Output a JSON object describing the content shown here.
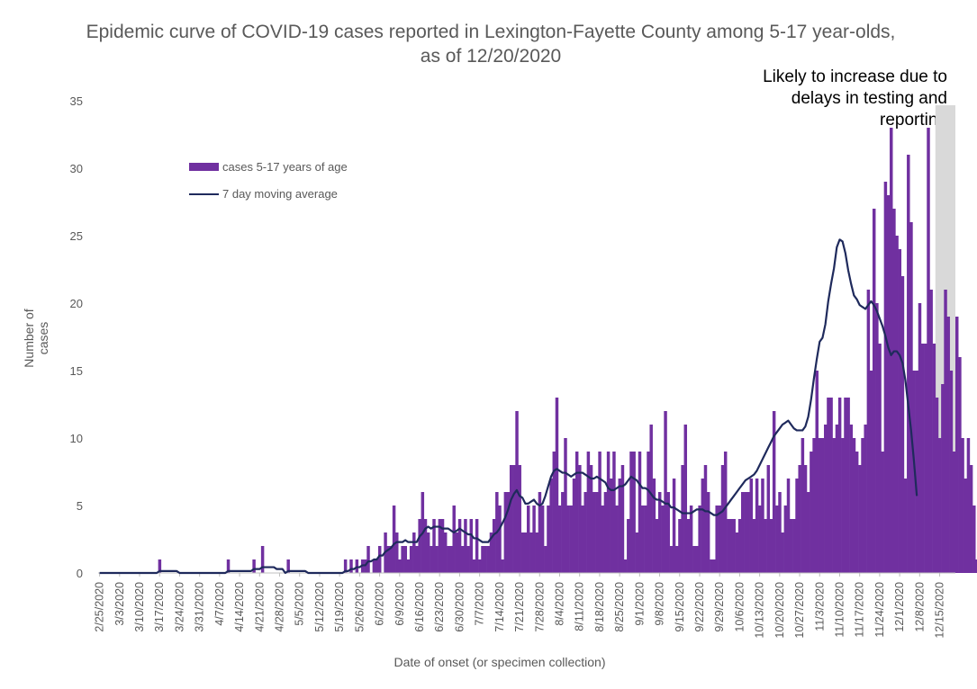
{
  "chart_data": {
    "type": "bar",
    "title": "Epidemic curve of COVID-19 cases reported in Lexington-Fayette County among 5-17 year-olds, as of 12/20/2020",
    "xlabel": "Date of onset (or specimen collection)",
    "ylabel": "Number of cases",
    "ylim": [
      0,
      35
    ],
    "yticks": [
      0,
      5,
      10,
      15,
      20,
      25,
      30,
      35
    ],
    "x_tick_labels": [
      "2/25/2020",
      "3/3/2020",
      "3/10/2020",
      "3/17/2020",
      "3/24/2020",
      "3/31/2020",
      "4/7/2020",
      "4/14/2020",
      "4/21/2020",
      "4/28/2020",
      "5/5/2020",
      "5/12/2020",
      "5/19/2020",
      "5/26/2020",
      "6/2/2020",
      "6/9/2020",
      "6/16/2020",
      "6/23/2020",
      "6/30/2020",
      "7/7/2020",
      "7/14/2020",
      "7/21/2020",
      "7/28/2020",
      "8/4/2020",
      "8/11/2020",
      "8/18/2020",
      "8/25/2020",
      "9/1/2020",
      "9/8/2020",
      "9/15/2020",
      "9/22/2020",
      "9/29/2020",
      "10/6/2020",
      "10/13/2020",
      "10/20/2020",
      "10/27/2020",
      "11/3/2020",
      "11/10/2020",
      "11/17/2020",
      "11/24/2020",
      "12/1/2020",
      "12/8/2020",
      "12/15/2020"
    ],
    "first_date": "2/25/2020",
    "last_date": "12/20/2020",
    "shaded_region": {
      "start": "12/14/2020",
      "end": "12/20/2020"
    },
    "annotation": "Likely to increase due to delays in testing and reporting",
    "legend_position": "upper-left",
    "colors": {
      "bars": "#7030a0",
      "moving_average": "#1f2a5c",
      "shade": "#d9d9d9"
    },
    "series": [
      {
        "name": "cases 5-17 years of age",
        "type": "bar",
        "values": [
          0,
          0,
          0,
          0,
          0,
          0,
          0,
          0,
          0,
          0,
          0,
          0,
          0,
          0,
          0,
          0,
          0,
          0,
          0,
          0,
          0,
          1,
          0,
          0,
          0,
          0,
          0,
          0,
          0,
          0,
          0,
          0,
          0,
          0,
          0,
          0,
          0,
          0,
          0,
          0,
          0,
          0,
          0,
          0,
          0,
          1,
          0,
          0,
          0,
          0,
          0,
          0,
          0,
          0,
          1,
          0,
          0,
          2,
          0,
          0,
          0,
          0,
          0,
          0,
          0,
          0,
          1,
          0,
          0,
          0,
          0,
          0,
          0,
          0,
          0,
          0,
          0,
          0,
          0,
          0,
          0,
          0,
          0,
          0,
          0,
          0,
          1,
          0,
          1,
          0,
          1,
          0,
          1,
          1,
          2,
          0,
          1,
          1,
          2,
          0,
          3,
          2,
          2,
          5,
          3,
          1,
          2,
          2,
          1,
          2,
          3,
          2,
          4,
          6,
          4,
          3,
          2,
          4,
          2,
          4,
          4,
          3,
          2,
          2,
          5,
          3,
          4,
          2,
          4,
          2,
          4,
          1,
          4,
          1,
          2,
          2,
          2,
          3,
          4,
          6,
          5,
          1,
          6,
          6,
          8,
          8,
          12,
          8,
          3,
          3,
          5,
          3,
          5,
          3,
          6,
          5,
          2,
          5,
          7,
          9,
          13,
          5,
          6,
          10,
          5,
          5,
          7,
          9,
          8,
          5,
          6,
          9,
          8,
          6,
          6,
          9,
          5,
          6,
          9,
          7,
          9,
          5,
          7,
          8,
          1,
          4,
          9,
          9,
          3,
          9,
          5,
          5,
          9,
          11,
          7,
          4,
          6,
          5,
          12,
          6,
          2,
          7,
          2,
          4,
          8,
          11,
          4,
          5,
          2,
          2,
          5,
          7,
          8,
          6,
          1,
          1,
          5,
          5,
          8,
          9,
          4,
          4,
          4,
          3,
          4,
          6,
          6,
          6,
          7,
          4,
          7,
          5,
          7,
          4,
          8,
          4,
          12,
          5,
          6,
          3,
          5,
          7,
          4,
          4,
          7,
          8,
          10,
          8,
          6,
          9,
          10,
          15,
          10,
          10,
          11,
          13,
          13,
          10,
          11,
          13,
          10,
          13,
          13,
          11,
          10,
          9,
          8,
          10,
          11,
          21,
          15,
          27,
          20,
          17,
          9,
          29,
          28,
          33,
          27,
          25,
          24,
          22,
          7,
          31,
          26,
          15,
          15,
          20,
          17,
          17,
          33,
          21,
          17,
          13,
          10,
          14,
          21,
          19,
          15,
          9,
          19,
          16,
          10,
          7,
          10,
          8,
          5,
          1
        ]
      },
      {
        "name": "7 day moving average",
        "type": "line",
        "values": [
          0,
          0,
          0,
          0,
          0,
          0,
          0,
          0,
          0,
          0,
          0,
          0,
          0,
          0,
          0,
          0,
          0,
          0,
          0,
          0,
          0,
          0.14,
          0.14,
          0.14,
          0.14,
          0.14,
          0.14,
          0.14,
          0,
          0,
          0,
          0,
          0,
          0,
          0,
          0,
          0,
          0,
          0,
          0,
          0,
          0,
          0,
          0,
          0,
          0.14,
          0.14,
          0.14,
          0.14,
          0.14,
          0.14,
          0.14,
          0.14,
          0.14,
          0.29,
          0.29,
          0.29,
          0.43,
          0.43,
          0.43,
          0.43,
          0.43,
          0.29,
          0.29,
          0.29,
          0,
          0.14,
          0.14,
          0.14,
          0.14,
          0.14,
          0.14,
          0.14,
          0,
          0,
          0,
          0,
          0,
          0,
          0,
          0,
          0,
          0,
          0,
          0,
          0,
          0.14,
          0.14,
          0.29,
          0.29,
          0.43,
          0.43,
          0.57,
          0.57,
          0.86,
          0.86,
          1,
          1,
          1.29,
          1.29,
          1.57,
          1.71,
          1.86,
          2.14,
          2.29,
          2.29,
          2.29,
          2.43,
          2.29,
          2.29,
          2.29,
          2.29,
          2.71,
          2.93,
          3.29,
          3.43,
          3.29,
          3.43,
          3.43,
          3.43,
          3.29,
          3.29,
          3.29,
          3.14,
          3,
          3.14,
          3.29,
          3.14,
          3,
          2.86,
          2.86,
          2.57,
          2.57,
          2.43,
          2.29,
          2.29,
          2.29,
          2.57,
          2.86,
          3,
          3.29,
          3.71,
          4.14,
          4.71,
          5.43,
          5.86,
          6.14,
          5.71,
          5.57,
          5.14,
          5.14,
          5.29,
          5.43,
          5.14,
          5,
          5.14,
          5.71,
          6.43,
          7.14,
          7.57,
          7.71,
          7.57,
          7.43,
          7.43,
          7.29,
          7.14,
          7.29,
          7.43,
          7.43,
          7.43,
          7.29,
          7.14,
          7,
          7,
          7.14,
          7,
          6.86,
          6.71,
          6.29,
          6.14,
          6.14,
          6.29,
          6.43,
          6.43,
          6.57,
          6.86,
          7.14,
          7,
          6.86,
          6.57,
          6.29,
          6.29,
          6.14,
          5.86,
          5.57,
          5.43,
          5.43,
          5.29,
          5.14,
          5.14,
          4.86,
          4.86,
          4.71,
          4.57,
          4.43,
          4.43,
          4.43,
          4.43,
          4.57,
          4.71,
          4.71,
          4.71,
          4.57,
          4.57,
          4.43,
          4.29,
          4.29,
          4.43,
          4.57,
          4.86,
          5.14,
          5.43,
          5.71,
          6,
          6.29,
          6.57,
          6.86,
          7,
          7.14,
          7.29,
          7.57,
          8,
          8.43,
          8.86,
          9.29,
          9.71,
          10.14,
          10.43,
          10.71,
          11,
          11.14,
          11.29,
          11,
          10.71,
          10.57,
          10.57,
          10.57,
          10.86,
          11.57,
          12.86,
          14.43,
          15.86,
          17.14,
          17.43,
          18.43,
          20.14,
          21.43,
          22.57,
          24.14,
          24.71,
          24.57,
          23.71,
          22.43,
          21.43,
          20.57,
          20.29,
          19.86,
          19.71,
          19.57,
          19.86,
          20.14,
          19.86,
          19.43,
          18.86,
          18.29,
          17.57,
          16.71,
          16.14,
          16.43,
          16.43,
          16.14,
          15.57,
          14.29,
          12.43,
          10.57,
          8.29,
          5.71
        ]
      }
    ]
  }
}
